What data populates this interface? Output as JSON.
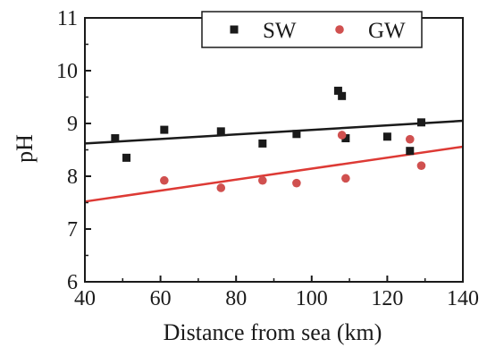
{
  "chart_data": {
    "type": "scatter",
    "xlabel": "Distance from sea (km)",
    "ylabel": "pH",
    "xlim": [
      40,
      140
    ],
    "ylim": [
      6,
      11
    ],
    "xticks": [
      "40",
      "60",
      "80",
      "100",
      "120",
      "140"
    ],
    "yticks": [
      "6",
      "7",
      "8",
      "9",
      "10",
      "11"
    ],
    "legend_position": "top-right",
    "grid": false,
    "series": [
      {
        "name": "SW",
        "marker": "square",
        "color": "#1a1a1a",
        "points": [
          {
            "x": 48,
            "y": 8.72
          },
          {
            "x": 51,
            "y": 8.35
          },
          {
            "x": 61,
            "y": 8.88
          },
          {
            "x": 76,
            "y": 8.85
          },
          {
            "x": 87,
            "y": 8.62
          },
          {
            "x": 96,
            "y": 8.8
          },
          {
            "x": 107,
            "y": 9.62
          },
          {
            "x": 108,
            "y": 9.52
          },
          {
            "x": 109,
            "y": 8.72
          },
          {
            "x": 120,
            "y": 8.75
          },
          {
            "x": 126,
            "y": 8.48
          },
          {
            "x": 129,
            "y": 9.02
          }
        ],
        "fit": {
          "x": [
            40,
            140
          ],
          "y": [
            8.62,
            9.05
          ],
          "color": "#1a1a1a"
        }
      },
      {
        "name": "GW",
        "marker": "circle",
        "color": "#d0504f",
        "points": [
          {
            "x": 61,
            "y": 7.92
          },
          {
            "x": 76,
            "y": 7.78
          },
          {
            "x": 87,
            "y": 7.92
          },
          {
            "x": 96,
            "y": 7.87
          },
          {
            "x": 108,
            "y": 8.78
          },
          {
            "x": 109,
            "y": 7.96
          },
          {
            "x": 126,
            "y": 8.7
          },
          {
            "x": 129,
            "y": 8.2
          }
        ],
        "fit": {
          "x": [
            40,
            140
          ],
          "y": [
            7.52,
            8.56
          ],
          "color": "#dd3a35"
        }
      }
    ]
  }
}
